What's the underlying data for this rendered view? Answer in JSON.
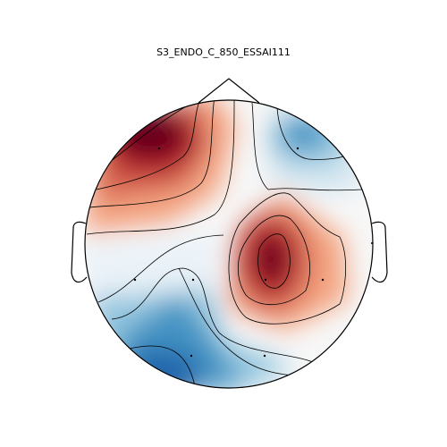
{
  "figure": {
    "title": "S3_ENDO_C_850_ESSAI111"
  },
  "colors": {
    "background": "#ffffff",
    "outline": "#000000",
    "deep_red": "#67001f",
    "red": "#b2182b",
    "light_red": "#f4a582",
    "neutral": "#f7f7f7",
    "light_blue": "#92c5de",
    "blue": "#2166ac"
  },
  "icons": [
    "head-outline",
    "nose-icon",
    "left-ear-icon",
    "right-ear-icon",
    "sensor-dot-icon"
  ]
}
